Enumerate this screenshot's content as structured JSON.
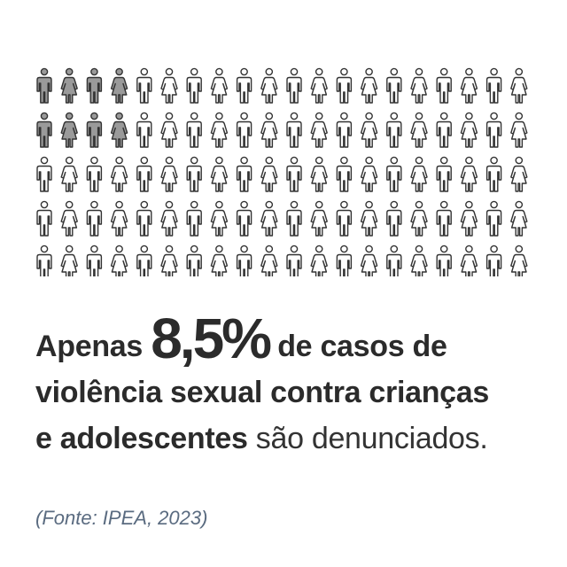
{
  "pictogram": {
    "rows": 5,
    "columns": 20,
    "total": 100,
    "highlighted_percent": 8.5,
    "highlight_color": "#9a9a9a",
    "outline_color": "#333333",
    "icon_pattern": [
      "male-figure-icon",
      "female-figure-icon"
    ]
  },
  "headline": {
    "prefix": "Apenas",
    "percent": "8,5%",
    "line1_rest": "de casos de",
    "line2": "violência sexual contra crianças",
    "line3_bold": "e adolescentes",
    "line3_light": "são denunciados."
  },
  "source": "(Fonte: IPEA, 2023)"
}
